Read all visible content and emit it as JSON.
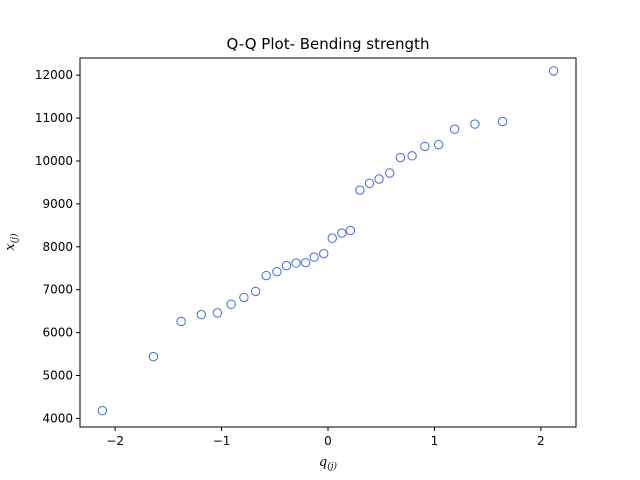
{
  "chart_data": {
    "type": "scatter",
    "title": "Q-Q Plot- Bending strength",
    "xlabel": {
      "main": "q",
      "sub": "(j)"
    },
    "ylabel": {
      "main": "x",
      "sub": "(j)"
    },
    "xlim": [
      -2.33,
      2.33
    ],
    "ylim": [
      3800,
      12400
    ],
    "xticks": [
      -2,
      -1,
      0,
      1,
      2
    ],
    "xtick_labels": [
      "−2",
      "−1",
      "0",
      "1",
      "2"
    ],
    "yticks": [
      4000,
      5000,
      6000,
      7000,
      8000,
      9000,
      10000,
      11000,
      12000
    ],
    "ytick_labels": [
      "4000",
      "5000",
      "6000",
      "7000",
      "8000",
      "9000",
      "10000",
      "11000",
      "12000"
    ],
    "grid": false,
    "marker": {
      "style": "open-circle",
      "color": "#4169e1"
    },
    "points": [
      {
        "x": -2.12,
        "y": 4180
      },
      {
        "x": -1.64,
        "y": 5440
      },
      {
        "x": -1.38,
        "y": 6260
      },
      {
        "x": -1.19,
        "y": 6420
      },
      {
        "x": -1.04,
        "y": 6460
      },
      {
        "x": -0.91,
        "y": 6660
      },
      {
        "x": -0.79,
        "y": 6820
      },
      {
        "x": -0.68,
        "y": 6960
      },
      {
        "x": -0.58,
        "y": 7330
      },
      {
        "x": -0.48,
        "y": 7420
      },
      {
        "x": -0.39,
        "y": 7560
      },
      {
        "x": -0.3,
        "y": 7620
      },
      {
        "x": -0.21,
        "y": 7630
      },
      {
        "x": -0.13,
        "y": 7760
      },
      {
        "x": -0.04,
        "y": 7840
      },
      {
        "x": 0.04,
        "y": 8200
      },
      {
        "x": 0.13,
        "y": 8320
      },
      {
        "x": 0.21,
        "y": 8380
      },
      {
        "x": 0.3,
        "y": 9320
      },
      {
        "x": 0.39,
        "y": 9480
      },
      {
        "x": 0.48,
        "y": 9580
      },
      {
        "x": 0.58,
        "y": 9720
      },
      {
        "x": 0.68,
        "y": 10080
      },
      {
        "x": 0.79,
        "y": 10120
      },
      {
        "x": 0.91,
        "y": 10340
      },
      {
        "x": 1.04,
        "y": 10380
      },
      {
        "x": 1.19,
        "y": 10740
      },
      {
        "x": 1.38,
        "y": 10860
      },
      {
        "x": 1.64,
        "y": 10920
      },
      {
        "x": 2.12,
        "y": 12100
      }
    ]
  }
}
